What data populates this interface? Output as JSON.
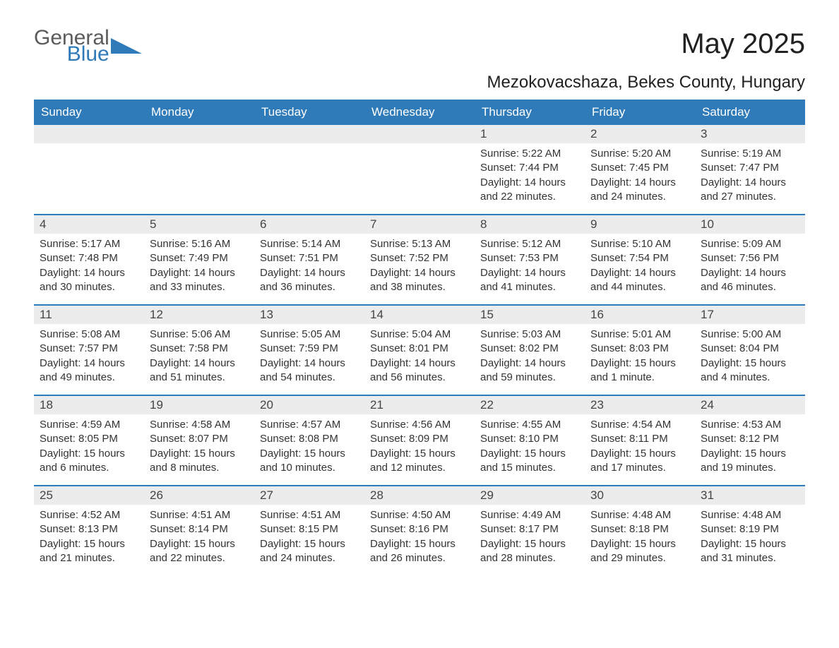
{
  "logo": {
    "text1": "General",
    "text2": "Blue",
    "shape_color": "#2f7ab8",
    "text1_color": "#5b5b5b"
  },
  "title": "May 2025",
  "subtitle": "Mezokovacshaza, Bekes County, Hungary",
  "colors": {
    "header_bg": "#2f7ab8",
    "header_text": "#ffffff",
    "daynum_bg": "#ececec",
    "border": "#2f7ab8",
    "body_text": "#333333",
    "background": "#ffffff"
  },
  "typography": {
    "title_fontsize": 40,
    "subtitle_fontsize": 24,
    "weekday_fontsize": 17,
    "daynum_fontsize": 17,
    "body_fontsize": 15
  },
  "weekdays": [
    "Sunday",
    "Monday",
    "Tuesday",
    "Wednesday",
    "Thursday",
    "Friday",
    "Saturday"
  ],
  "weeks": [
    [
      {
        "n": "",
        "sr": "",
        "ss": "",
        "dl": ""
      },
      {
        "n": "",
        "sr": "",
        "ss": "",
        "dl": ""
      },
      {
        "n": "",
        "sr": "",
        "ss": "",
        "dl": ""
      },
      {
        "n": "",
        "sr": "",
        "ss": "",
        "dl": ""
      },
      {
        "n": "1",
        "sr": "Sunrise: 5:22 AM",
        "ss": "Sunset: 7:44 PM",
        "dl": "Daylight: 14 hours and 22 minutes."
      },
      {
        "n": "2",
        "sr": "Sunrise: 5:20 AM",
        "ss": "Sunset: 7:45 PM",
        "dl": "Daylight: 14 hours and 24 minutes."
      },
      {
        "n": "3",
        "sr": "Sunrise: 5:19 AM",
        "ss": "Sunset: 7:47 PM",
        "dl": "Daylight: 14 hours and 27 minutes."
      }
    ],
    [
      {
        "n": "4",
        "sr": "Sunrise: 5:17 AM",
        "ss": "Sunset: 7:48 PM",
        "dl": "Daylight: 14 hours and 30 minutes."
      },
      {
        "n": "5",
        "sr": "Sunrise: 5:16 AM",
        "ss": "Sunset: 7:49 PM",
        "dl": "Daylight: 14 hours and 33 minutes."
      },
      {
        "n": "6",
        "sr": "Sunrise: 5:14 AM",
        "ss": "Sunset: 7:51 PM",
        "dl": "Daylight: 14 hours and 36 minutes."
      },
      {
        "n": "7",
        "sr": "Sunrise: 5:13 AM",
        "ss": "Sunset: 7:52 PM",
        "dl": "Daylight: 14 hours and 38 minutes."
      },
      {
        "n": "8",
        "sr": "Sunrise: 5:12 AM",
        "ss": "Sunset: 7:53 PM",
        "dl": "Daylight: 14 hours and 41 minutes."
      },
      {
        "n": "9",
        "sr": "Sunrise: 5:10 AM",
        "ss": "Sunset: 7:54 PM",
        "dl": "Daylight: 14 hours and 44 minutes."
      },
      {
        "n": "10",
        "sr": "Sunrise: 5:09 AM",
        "ss": "Sunset: 7:56 PM",
        "dl": "Daylight: 14 hours and 46 minutes."
      }
    ],
    [
      {
        "n": "11",
        "sr": "Sunrise: 5:08 AM",
        "ss": "Sunset: 7:57 PM",
        "dl": "Daylight: 14 hours and 49 minutes."
      },
      {
        "n": "12",
        "sr": "Sunrise: 5:06 AM",
        "ss": "Sunset: 7:58 PM",
        "dl": "Daylight: 14 hours and 51 minutes."
      },
      {
        "n": "13",
        "sr": "Sunrise: 5:05 AM",
        "ss": "Sunset: 7:59 PM",
        "dl": "Daylight: 14 hours and 54 minutes."
      },
      {
        "n": "14",
        "sr": "Sunrise: 5:04 AM",
        "ss": "Sunset: 8:01 PM",
        "dl": "Daylight: 14 hours and 56 minutes."
      },
      {
        "n": "15",
        "sr": "Sunrise: 5:03 AM",
        "ss": "Sunset: 8:02 PM",
        "dl": "Daylight: 14 hours and 59 minutes."
      },
      {
        "n": "16",
        "sr": "Sunrise: 5:01 AM",
        "ss": "Sunset: 8:03 PM",
        "dl": "Daylight: 15 hours and 1 minute."
      },
      {
        "n": "17",
        "sr": "Sunrise: 5:00 AM",
        "ss": "Sunset: 8:04 PM",
        "dl": "Daylight: 15 hours and 4 minutes."
      }
    ],
    [
      {
        "n": "18",
        "sr": "Sunrise: 4:59 AM",
        "ss": "Sunset: 8:05 PM",
        "dl": "Daylight: 15 hours and 6 minutes."
      },
      {
        "n": "19",
        "sr": "Sunrise: 4:58 AM",
        "ss": "Sunset: 8:07 PM",
        "dl": "Daylight: 15 hours and 8 minutes."
      },
      {
        "n": "20",
        "sr": "Sunrise: 4:57 AM",
        "ss": "Sunset: 8:08 PM",
        "dl": "Daylight: 15 hours and 10 minutes."
      },
      {
        "n": "21",
        "sr": "Sunrise: 4:56 AM",
        "ss": "Sunset: 8:09 PM",
        "dl": "Daylight: 15 hours and 12 minutes."
      },
      {
        "n": "22",
        "sr": "Sunrise: 4:55 AM",
        "ss": "Sunset: 8:10 PM",
        "dl": "Daylight: 15 hours and 15 minutes."
      },
      {
        "n": "23",
        "sr": "Sunrise: 4:54 AM",
        "ss": "Sunset: 8:11 PM",
        "dl": "Daylight: 15 hours and 17 minutes."
      },
      {
        "n": "24",
        "sr": "Sunrise: 4:53 AM",
        "ss": "Sunset: 8:12 PM",
        "dl": "Daylight: 15 hours and 19 minutes."
      }
    ],
    [
      {
        "n": "25",
        "sr": "Sunrise: 4:52 AM",
        "ss": "Sunset: 8:13 PM",
        "dl": "Daylight: 15 hours and 21 minutes."
      },
      {
        "n": "26",
        "sr": "Sunrise: 4:51 AM",
        "ss": "Sunset: 8:14 PM",
        "dl": "Daylight: 15 hours and 22 minutes."
      },
      {
        "n": "27",
        "sr": "Sunrise: 4:51 AM",
        "ss": "Sunset: 8:15 PM",
        "dl": "Daylight: 15 hours and 24 minutes."
      },
      {
        "n": "28",
        "sr": "Sunrise: 4:50 AM",
        "ss": "Sunset: 8:16 PM",
        "dl": "Daylight: 15 hours and 26 minutes."
      },
      {
        "n": "29",
        "sr": "Sunrise: 4:49 AM",
        "ss": "Sunset: 8:17 PM",
        "dl": "Daylight: 15 hours and 28 minutes."
      },
      {
        "n": "30",
        "sr": "Sunrise: 4:48 AM",
        "ss": "Sunset: 8:18 PM",
        "dl": "Daylight: 15 hours and 29 minutes."
      },
      {
        "n": "31",
        "sr": "Sunrise: 4:48 AM",
        "ss": "Sunset: 8:19 PM",
        "dl": "Daylight: 15 hours and 31 minutes."
      }
    ]
  ]
}
